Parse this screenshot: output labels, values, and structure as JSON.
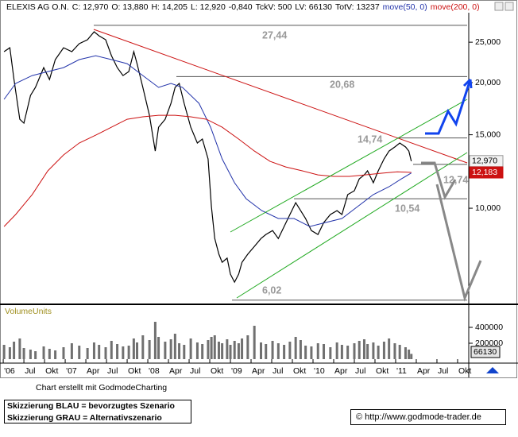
{
  "chart_data": [
    {
      "type": "line",
      "title": "ELEXIS AG O.N.",
      "log_y": true,
      "header_fields": [
        "C: 12,970",
        "O: 13,880",
        "H: 14,205",
        "L: 12,920",
        "-0,840",
        "TckV: 500",
        "LV: 66130",
        "TotV: 13237"
      ],
      "xlim": [
        2006.23,
        2011.885
      ],
      "ylim": [
        5.91,
        29.42
      ],
      "xticks": [
        {
          "value": 2006.25,
          "label": "'06"
        },
        {
          "value": 2006.5,
          "label": "Jul"
        },
        {
          "value": 2006.75,
          "label": "Okt"
        },
        {
          "value": 2007,
          "label": "'07"
        },
        {
          "value": 2007.25,
          "label": "Apr"
        },
        {
          "value": 2007.5,
          "label": "Jul"
        },
        {
          "value": 2007.75,
          "label": "Okt"
        },
        {
          "value": 2008,
          "label": "'08"
        },
        {
          "value": 2008.25,
          "label": "Apr"
        },
        {
          "value": 2008.5,
          "label": "Jul"
        },
        {
          "value": 2008.75,
          "label": "Okt"
        },
        {
          "value": 2009,
          "label": "'09"
        },
        {
          "value": 2009.25,
          "label": "Apr"
        },
        {
          "value": 2009.5,
          "label": "Jul"
        },
        {
          "value": 2009.75,
          "label": "Okt"
        },
        {
          "value": 2010,
          "label": "'10"
        },
        {
          "value": 2010.25,
          "label": "Apr"
        },
        {
          "value": 2010.5,
          "label": "Jul"
        },
        {
          "value": 2010.75,
          "label": "Okt"
        },
        {
          "value": 2011,
          "label": "'11"
        },
        {
          "value": 2011.25,
          "label": "Apr"
        },
        {
          "value": 2011.5,
          "label": "Jul"
        },
        {
          "value": 2011.75,
          "label": "Okt"
        }
      ],
      "yticks": [
        {
          "value": 10,
          "label": "10,000"
        },
        {
          "value": 15,
          "label": "15,000"
        },
        {
          "value": 20,
          "label": "20,000"
        },
        {
          "value": 25,
          "label": "25,000"
        }
      ],
      "levels": [
        {
          "value": 27.44,
          "label": "27,44"
        },
        {
          "value": 20.68,
          "label": "20,68"
        },
        {
          "value": 14.74,
          "label": "14,74"
        },
        {
          "value": 12.74,
          "label": "12,74"
        },
        {
          "value": 10.54,
          "label": "10,54"
        },
        {
          "value": 6.02,
          "label": "6,02"
        }
      ],
      "series": [
        {
          "color": "#000000",
          "x": [
            2006.26,
            2006.33,
            2006.38,
            2006.45,
            2006.5,
            2006.58,
            2006.64,
            2006.74,
            2006.81,
            2006.88,
            2006.98,
            2007.08,
            2007.17,
            2007.27,
            2007.35,
            2007.41,
            2007.49,
            2007.56,
            2007.63,
            2007.7,
            2007.77,
            2007.83,
            2007.87,
            2007.94,
            2008.02,
            2008.09,
            2008.13,
            2008.21,
            2008.28,
            2008.33,
            2008.38,
            2008.44,
            2008.52,
            2008.6,
            2008.66,
            2008.73,
            2008.77,
            2008.81,
            2008.86,
            2008.9,
            2008.96,
            2009.0,
            2009.05,
            2009.1,
            2009.14,
            2009.21,
            2009.29,
            2009.37,
            2009.43,
            2009.51,
            2009.58,
            2009.65,
            2009.72,
            2009.79,
            2009.85,
            2009.91,
            2009.98,
            2010.06,
            2010.13,
            2010.21,
            2010.29,
            2010.35,
            2010.42,
            2010.5,
            2010.56,
            2010.62,
            2010.66,
            2010.73,
            2010.79,
            2010.86,
            2010.92,
            2010.99,
            2011.05,
            2011.12,
            2011.16,
            2011.19
          ],
          "values": [
            23.73,
            24.25,
            20.35,
            16.34,
            15.99,
            18.64,
            19.48,
            21.73,
            20.35,
            22.71,
            24.25,
            23.73,
            24.79,
            25.34,
            26.48,
            25.9,
            25.34,
            23.21,
            21.73,
            20.8,
            21.26,
            23.73,
            22.21,
            19.48,
            16.7,
            13.71,
            15.64,
            16.34,
            17.84,
            19.48,
            19.91,
            17.84,
            15.64,
            14.33,
            14.65,
            13.13,
            10.09,
            8.46,
            7.76,
            7.42,
            7.59,
            6.95,
            6.65,
            6.95,
            7.42,
            7.76,
            8.1,
            8.46,
            8.65,
            8.84,
            8.46,
            9.04,
            9.66,
            10.31,
            9.87,
            9.45,
            8.84,
            8.65,
            9.24,
            9.66,
            9.87,
            9.66,
            10.78,
            11.01,
            11.76,
            12.02,
            12.29,
            11.51,
            12.29,
            13.13,
            13.71,
            14.02,
            14.33,
            14.02,
            13.71,
            12.97
          ],
          "value_labels": [
            null,
            null,
            null,
            null,
            null,
            null,
            null,
            null,
            null,
            null,
            null,
            null,
            null,
            null,
            null,
            null,
            null,
            null,
            null,
            null,
            null,
            null,
            null,
            null,
            null,
            null,
            null,
            null,
            null,
            null,
            null,
            null,
            null,
            null,
            null,
            null,
            null,
            null,
            null,
            null,
            null,
            null,
            null,
            null,
            null,
            null,
            null,
            null,
            null,
            null,
            null,
            null,
            null,
            null,
            null,
            null,
            null,
            null,
            null,
            null,
            null,
            null,
            null,
            null,
            null,
            null,
            null,
            null,
            null,
            null,
            null,
            null,
            null,
            null,
            null,
            "12,970"
          ]
        },
        {
          "name": "move(50, 0)",
          "color": "#2233aa",
          "x": [
            2006.26,
            2006.4,
            2006.6,
            2006.79,
            2006.98,
            2007.17,
            2007.37,
            2007.56,
            2007.75,
            2007.94,
            2008.13,
            2008.28,
            2008.42,
            2008.62,
            2008.76,
            2008.9,
            2009.05,
            2009.19,
            2009.38,
            2009.58,
            2009.77,
            2009.96,
            2010.15,
            2010.35,
            2010.54,
            2010.73,
            2010.92,
            2011.07,
            2011.19
          ],
          "values": [
            18.24,
            19.91,
            20.8,
            21.26,
            21.73,
            22.71,
            23.21,
            22.71,
            22.21,
            20.8,
            19.48,
            19.91,
            19.48,
            17.84,
            15.64,
            13.13,
            11.51,
            10.54,
            9.87,
            9.45,
            9.45,
            9.04,
            9.24,
            9.45,
            10.09,
            10.78,
            11.26,
            11.76,
            12.15
          ]
        },
        {
          "name": "move(200, 0)",
          "color": "#cc1111",
          "x": [
            2006.26,
            2006.4,
            2006.6,
            2006.79,
            2006.98,
            2007.17,
            2007.37,
            2007.56,
            2007.75,
            2007.94,
            2008.13,
            2008.33,
            2008.52,
            2008.71,
            2008.9,
            2009.1,
            2009.29,
            2009.48,
            2009.67,
            2009.87,
            2010.06,
            2010.25,
            2010.44,
            2010.63,
            2010.83,
            2011.02,
            2011.19
          ],
          "values": [
            9.04,
            9.66,
            10.78,
            12.29,
            13.42,
            14.33,
            14.97,
            15.64,
            16.34,
            16.56,
            16.7,
            16.7,
            16.56,
            16.34,
            15.64,
            14.65,
            13.71,
            12.95,
            12.56,
            12.29,
            12.02,
            11.92,
            11.92,
            12.02,
            12.13,
            12.23,
            12.183
          ],
          "value_labels": [
            null,
            null,
            null,
            null,
            null,
            null,
            null,
            null,
            null,
            null,
            null,
            null,
            null,
            null,
            null,
            null,
            null,
            null,
            null,
            null,
            null,
            null,
            null,
            null,
            null,
            null,
            "12,183"
          ]
        }
      ]
    },
    {
      "type": "bar",
      "title": "VolumeUnits",
      "color": "#707070",
      "ylim": [
        0,
        670000
      ],
      "yticks": [
        200000,
        400000
      ],
      "values": [
        180000,
        150000,
        220000,
        260000,
        140000,
        120000,
        100000,
        160000,
        130000,
        110000,
        150000,
        200000,
        170000,
        140000,
        210000,
        180000,
        150000,
        230000,
        190000,
        160000,
        170000,
        260000,
        210000,
        300000,
        240000,
        470000,
        280000,
        220000,
        250000,
        320000,
        200000,
        180000,
        260000,
        210000,
        190000,
        240000,
        280000,
        300000,
        220000,
        200000,
        250000,
        180000,
        230000,
        200000,
        260000,
        300000,
        420000,
        210000,
        190000,
        230000,
        200000,
        180000,
        220000,
        280000,
        240000,
        170000,
        160000,
        200000,
        190000,
        150000,
        210000,
        180000,
        170000,
        200000,
        230000,
        250000,
        190000,
        210000,
        170000,
        220000,
        260000,
        200000,
        180000,
        150000,
        120000,
        66130
      ]
    }
  ],
  "footer": {
    "credit": "Chart erstellt mit GodmodeCharting",
    "legend": [
      "Skizzierung BLAU = bevorzugtes Szenario",
      "Skizzierung GRAU = Alternativszenario"
    ],
    "source": "© http://www.godmode-trader.de"
  }
}
